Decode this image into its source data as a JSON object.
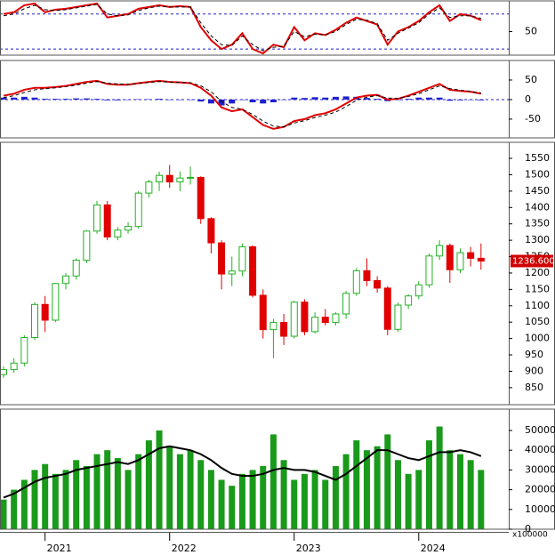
{
  "chart_data": [
    {
      "type": "line",
      "ylim": [
        23,
        85
      ],
      "yticks": [
        50
      ],
      "levels": [
        70,
        30
      ],
      "level_color": "#1f1fd0",
      "series": [
        {
          "name": "RSI",
          "color": "#e00000",
          "dash": false,
          "values": [
            70,
            72,
            80,
            82,
            72,
            75,
            76,
            78,
            80,
            82,
            66,
            68,
            70,
            76,
            78,
            80,
            78,
            79,
            78,
            55,
            40,
            30,
            35,
            48,
            30,
            25,
            35,
            32,
            55,
            40,
            48,
            46,
            52,
            60,
            66,
            62,
            58,
            35,
            50,
            55,
            62,
            72,
            80,
            62,
            70,
            68,
            63
          ]
        },
        {
          "name": "Signal",
          "color": "#000000",
          "dash": true,
          "values": [
            68,
            70,
            76,
            80,
            75,
            74,
            75,
            77,
            79,
            81,
            70,
            68,
            69,
            74,
            77,
            79,
            78,
            78,
            78,
            60,
            45,
            35,
            34,
            45,
            35,
            28,
            32,
            33,
            50,
            44,
            47,
            46,
            50,
            58,
            64,
            63,
            59,
            40,
            48,
            54,
            60,
            70,
            77,
            66,
            68,
            68,
            65
          ]
        }
      ]
    },
    {
      "type": "combo",
      "ylim": [
        -98,
        100
      ],
      "yticks": [
        50,
        0,
        -50
      ],
      "levels": [
        0
      ],
      "level_color": "#1f1fd0",
      "series": [
        {
          "name": "Histogram",
          "color": "#1f1fd0",
          "mark": "bar",
          "values": [
            5,
            5,
            7,
            5,
            2,
            2,
            2,
            3,
            3,
            2,
            -2,
            -2,
            -1,
            1,
            1,
            2,
            0,
            0,
            -1,
            -5,
            -10,
            -15,
            -10,
            0,
            -7,
            -10,
            -7,
            0,
            5,
            4,
            6,
            5,
            7,
            8,
            7,
            4,
            2,
            -4,
            -1,
            2,
            5,
            5,
            5,
            -3,
            -2,
            -1,
            -2
          ]
        },
        {
          "name": "MACD",
          "color": "#e00000",
          "mark": "line",
          "dash": false,
          "values": [
            10,
            15,
            25,
            30,
            30,
            32,
            35,
            40,
            45,
            48,
            40,
            38,
            38,
            42,
            45,
            48,
            45,
            44,
            42,
            30,
            10,
            -20,
            -30,
            -25,
            -45,
            -65,
            -75,
            -70,
            -55,
            -50,
            -40,
            -35,
            -25,
            -10,
            5,
            10,
            12,
            0,
            2,
            10,
            20,
            30,
            40,
            25,
            22,
            20,
            15
          ]
        },
        {
          "name": "Signal",
          "color": "#000000",
          "mark": "line",
          "dash": true,
          "values": [
            5,
            10,
            18,
            25,
            28,
            30,
            33,
            37,
            42,
            46,
            42,
            40,
            39,
            41,
            44,
            46,
            45,
            44,
            43,
            35,
            20,
            -5,
            -20,
            -25,
            -38,
            -55,
            -68,
            -70,
            -60,
            -54,
            -46,
            -40,
            -32,
            -18,
            -2,
            6,
            10,
            4,
            3,
            8,
            15,
            25,
            35,
            28,
            24,
            21,
            17
          ]
        }
      ]
    },
    {
      "type": "candlestick",
      "ylim": [
        798,
        1599
      ],
      "yticks": [
        850,
        900,
        950,
        1000,
        1050,
        1100,
        1150,
        1200,
        1250,
        1300,
        1350,
        1400,
        1450,
        1500,
        1550
      ],
      "up_color": "#22b022",
      "down_color": "#e00000",
      "last_price_label": "1236.600",
      "open": [
        890,
        905,
        925,
        1003,
        1104,
        1056,
        1168,
        1191,
        1239,
        1328,
        1408,
        1310,
        1331,
        1342,
        1444,
        1478,
        1498,
        1478,
        1490,
        1492,
        1366,
        1292,
        1197,
        1206,
        1280,
        1132,
        1027,
        1049,
        1007,
        1111,
        1021,
        1065,
        1049,
        1075,
        1138,
        1207,
        1177,
        1154,
        1028,
        1102,
        1130,
        1164,
        1252,
        1284,
        1210,
        1262,
        1245
      ],
      "high": [
        915,
        940,
        1010,
        1110,
        1130,
        1170,
        1200,
        1245,
        1330,
        1420,
        1420,
        1340,
        1355,
        1450,
        1485,
        1510,
        1530,
        1510,
        1525,
        1495,
        1370,
        1300,
        1250,
        1290,
        1285,
        1150,
        1060,
        1075,
        1115,
        1120,
        1080,
        1090,
        1080,
        1145,
        1215,
        1245,
        1190,
        1160,
        1110,
        1135,
        1175,
        1260,
        1300,
        1290,
        1275,
        1280,
        1290
      ],
      "low": [
        880,
        895,
        915,
        995,
        1020,
        1050,
        1150,
        1180,
        1230,
        1320,
        1300,
        1300,
        1320,
        1335,
        1430,
        1450,
        1460,
        1450,
        1470,
        1350,
        1260,
        1150,
        1160,
        1190,
        1125,
        1000,
        940,
        980,
        1000,
        1010,
        1015,
        1040,
        1040,
        1060,
        1130,
        1160,
        1140,
        1010,
        1020,
        1090,
        1120,
        1155,
        1240,
        1170,
        1200,
        1220,
        1210
      ],
      "close": [
        905,
        925,
        1003,
        1104,
        1056,
        1168,
        1191,
        1239,
        1328,
        1408,
        1310,
        1331,
        1342,
        1444,
        1478,
        1498,
        1478,
        1490,
        1492,
        1366,
        1292,
        1197,
        1206,
        1280,
        1132,
        1027,
        1049,
        1007,
        1111,
        1021,
        1065,
        1049,
        1075,
        1138,
        1207,
        1177,
        1154,
        1028,
        1102,
        1130,
        1164,
        1252,
        1284,
        1210,
        1262,
        1245,
        1236.6
      ]
    },
    {
      "type": "combo",
      "ylim": [
        0,
        60800
      ],
      "yticks": [
        0,
        10000,
        20000,
        30000,
        40000,
        50000
      ],
      "y_unit_label": "x100000",
      "categories": [
        null,
        null,
        null,
        null,
        "2021",
        null,
        null,
        null,
        null,
        null,
        null,
        null,
        null,
        null,
        null,
        null,
        "2022",
        null,
        null,
        null,
        null,
        null,
        null,
        null,
        null,
        null,
        null,
        null,
        "2023",
        null,
        null,
        null,
        null,
        null,
        null,
        null,
        null,
        null,
        null,
        null,
        "2024",
        null,
        null,
        null,
        null,
        null,
        null
      ],
      "series": [
        {
          "name": "Volume",
          "color": "#1a9a1a",
          "mark": "bar",
          "values": [
            15000,
            20000,
            25000,
            30000,
            33000,
            28000,
            30000,
            35000,
            32000,
            38000,
            40000,
            36000,
            30000,
            38000,
            45000,
            50000,
            42000,
            38000,
            40000,
            35000,
            30000,
            25000,
            22000,
            28000,
            30000,
            32000,
            48000,
            35000,
            25000,
            28000,
            30000,
            25000,
            32000,
            38000,
            45000,
            40000,
            42000,
            48000,
            35000,
            28000,
            30000,
            45000,
            52000,
            40000,
            38000,
            35000,
            30000
          ]
        },
        {
          "name": "Volume MA",
          "color": "#000000",
          "mark": "line",
          "dash": false,
          "values": [
            16000,
            18000,
            21000,
            24000,
            26000,
            27000,
            28000,
            30000,
            31000,
            32000,
            33000,
            34000,
            33000,
            35000,
            38000,
            41000,
            42000,
            41000,
            40000,
            38000,
            35000,
            31000,
            28000,
            27000,
            27000,
            28000,
            30000,
            31000,
            30000,
            30000,
            29000,
            27000,
            25000,
            28000,
            32000,
            36000,
            40000,
            40000,
            38000,
            36000,
            35000,
            37000,
            39000,
            39000,
            40000,
            39000,
            37000
          ]
        }
      ]
    }
  ]
}
